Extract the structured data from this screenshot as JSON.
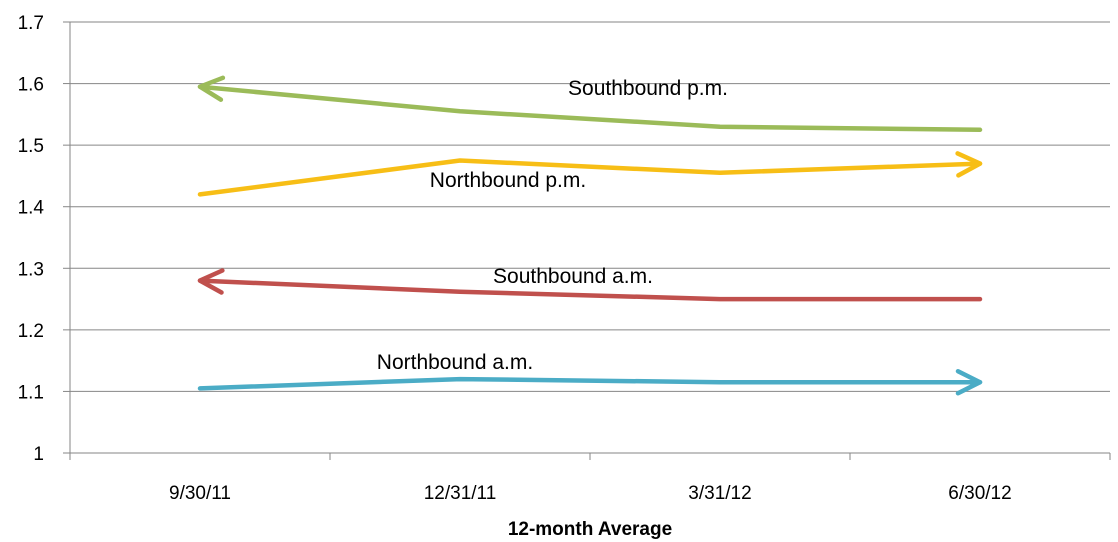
{
  "chart_data": {
    "type": "line",
    "title": "",
    "xlabel": "12-month Average",
    "ylabel": "",
    "categories": [
      "9/30/11",
      "12/31/11",
      "3/31/12",
      "6/30/12"
    ],
    "ylim": [
      1,
      1.7
    ],
    "yticks": [
      "1",
      "1.1",
      "1.2",
      "1.3",
      "1.4",
      "1.5",
      "1.6",
      "1.7"
    ],
    "grid": "horizontal",
    "legend": "none",
    "series": [
      {
        "name": "Southbound p.m.",
        "values": [
          1.595,
          1.555,
          1.53,
          1.525
        ],
        "color": "#9BBB59",
        "arrow": "start"
      },
      {
        "name": "Northbound p.m.",
        "values": [
          1.42,
          1.475,
          1.455,
          1.47
        ],
        "color": "#F7BE16",
        "arrow": "end"
      },
      {
        "name": "Southbound a.m.",
        "values": [
          1.28,
          1.262,
          1.25,
          1.25
        ],
        "color": "#C0504D",
        "arrow": "start"
      },
      {
        "name": "Northbound a.m.",
        "values": [
          1.105,
          1.12,
          1.115,
          1.115
        ],
        "color": "#4BACC6",
        "arrow": "end"
      }
    ]
  }
}
